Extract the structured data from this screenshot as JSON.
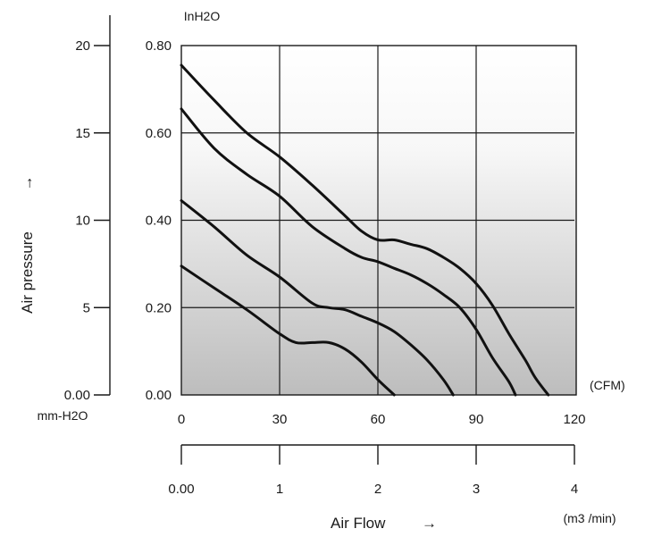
{
  "chart_data": {
    "type": "line",
    "inner_unit": "InH2O",
    "x_unit": "(CFM)",
    "x2_unit": "(m3 /min)",
    "y2_unit": "mm-H2O",
    "y_title": "Air pressure",
    "x_title": "Air Flow",
    "arrow": "→",
    "xlim": [
      0,
      120
    ],
    "ylim": [
      0,
      0.8
    ],
    "x_ticks": [
      "0",
      "30",
      "60",
      "90",
      "120"
    ],
    "y_ticks": [
      "0.00",
      "0.20",
      "0.40",
      "0.60",
      "0.80"
    ],
    "x2_ticks": [
      "0.00",
      "1",
      "2",
      "3",
      "4"
    ],
    "x2_values": [
      0,
      1,
      2,
      3,
      4
    ],
    "y2_ticks": [
      "0.00",
      "5",
      "10",
      "15",
      "20"
    ],
    "y2_values": [
      0,
      5,
      10,
      15,
      20
    ],
    "grid": true,
    "series": [
      {
        "x": [
          0,
          10,
          20,
          30,
          40,
          50,
          55,
          60,
          65,
          70,
          75,
          80,
          85,
          90,
          95,
          100,
          105,
          108,
          112
        ],
        "y": [
          0.755,
          0.675,
          0.6,
          0.545,
          0.48,
          0.41,
          0.375,
          0.355,
          0.355,
          0.345,
          0.335,
          0.315,
          0.29,
          0.255,
          0.205,
          0.14,
          0.08,
          0.04,
          0
        ]
      },
      {
        "x": [
          0,
          10,
          20,
          30,
          40,
          50,
          55,
          60,
          65,
          70,
          75,
          80,
          85,
          90,
          95,
          100,
          102
        ],
        "y": [
          0.655,
          0.565,
          0.505,
          0.455,
          0.385,
          0.335,
          0.315,
          0.305,
          0.29,
          0.275,
          0.255,
          0.23,
          0.2,
          0.15,
          0.085,
          0.03,
          0
        ]
      },
      {
        "x": [
          0,
          10,
          20,
          30,
          40,
          45,
          50,
          55,
          60,
          65,
          70,
          75,
          80,
          83
        ],
        "y": [
          0.445,
          0.385,
          0.32,
          0.27,
          0.21,
          0.2,
          0.195,
          0.18,
          0.165,
          0.145,
          0.115,
          0.08,
          0.035,
          0
        ]
      },
      {
        "x": [
          0,
          10,
          20,
          30,
          35,
          40,
          45,
          50,
          55,
          60,
          65
        ],
        "y": [
          0.295,
          0.245,
          0.195,
          0.14,
          0.12,
          0.12,
          0.12,
          0.105,
          0.075,
          0.035,
          0
        ]
      }
    ]
  }
}
